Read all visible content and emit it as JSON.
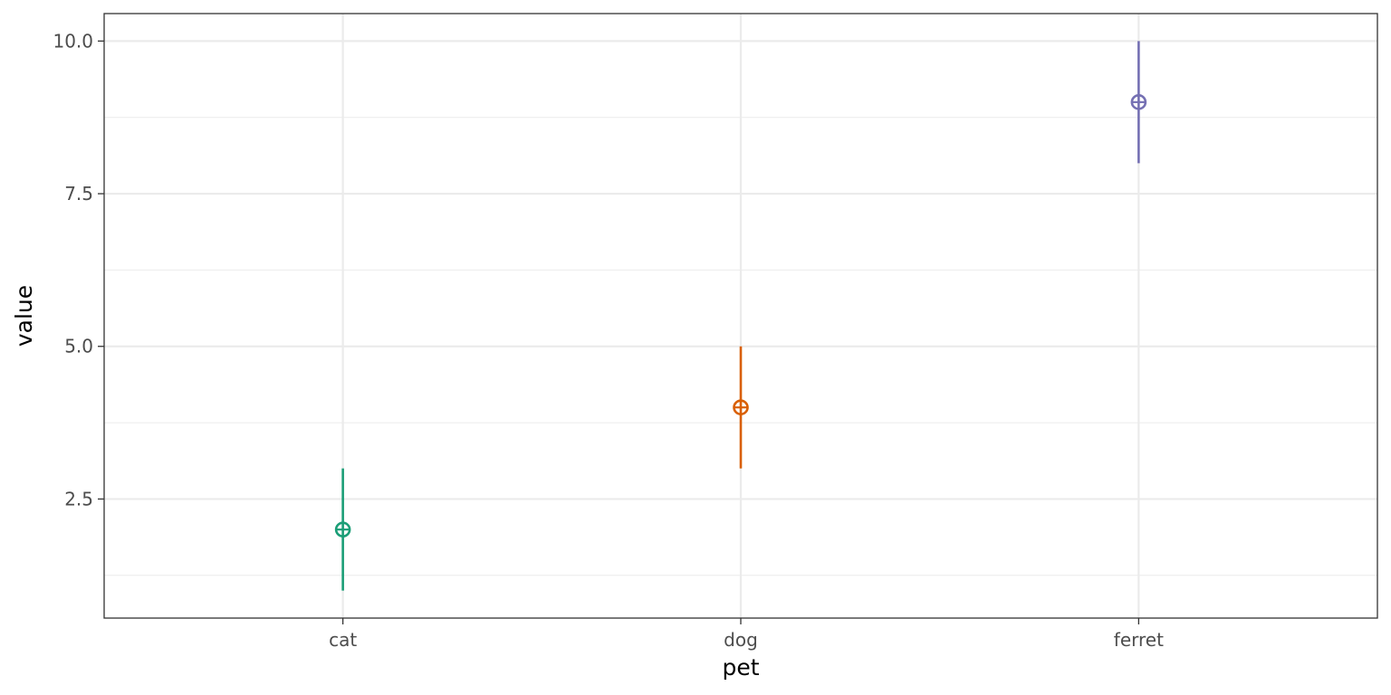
{
  "chart_data": {
    "type": "pointrange",
    "categories": [
      "cat",
      "dog",
      "ferret"
    ],
    "points": [
      {
        "category": "cat",
        "y": 2,
        "ymin": 1,
        "ymax": 3,
        "color": "#1b9e77"
      },
      {
        "category": "dog",
        "y": 4,
        "ymin": 3,
        "ymax": 5,
        "color": "#d95f02"
      },
      {
        "category": "ferret",
        "y": 9,
        "ymin": 8,
        "ymax": 10,
        "color": "#7570b3"
      }
    ],
    "xlabel": "pet",
    "ylabel": "value",
    "ylim": [
      0.55,
      10.45
    ],
    "yticks": [
      2.5,
      5.0,
      7.5,
      10.0
    ],
    "ytick_labels": [
      "2.5",
      "5.0",
      "7.5",
      "10.0"
    ],
    "yminor": [
      1.25,
      3.75,
      6.25,
      8.75
    ],
    "grid": true,
    "legend": "none"
  }
}
